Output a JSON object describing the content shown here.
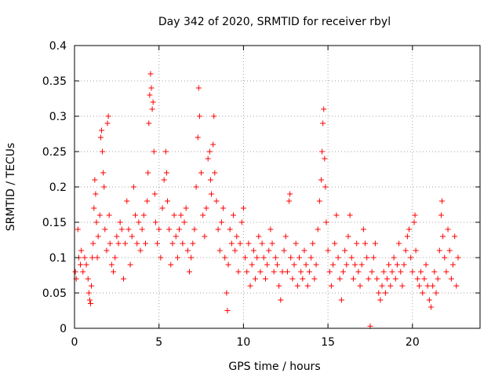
{
  "chart_data": {
    "type": "scatter",
    "title": "Day 342 of 2020, SRMTID for receiver rbyl",
    "xlabel": "GPS time / hours",
    "ylabel": "SRMTID / TECUs",
    "xlim": [
      0,
      24
    ],
    "ylim": [
      0,
      0.4
    ],
    "x_ticks": [
      "0",
      "5",
      "10",
      "15",
      "20"
    ],
    "y_ticks": [
      "0",
      "0.05",
      "0.1",
      "0.15",
      "0.2",
      "0.25",
      "0.3",
      "0.35",
      "0.4"
    ],
    "grid": true,
    "marker": "+",
    "series": [
      {
        "color": "#ff0000",
        "points": [
          [
            0.05,
            0.08
          ],
          [
            0.1,
            0.07
          ],
          [
            0.2,
            0.14
          ],
          [
            0.25,
            0.1
          ],
          [
            0.35,
            0.09
          ],
          [
            0.4,
            0.11
          ],
          [
            0.5,
            0.08
          ],
          [
            0.6,
            0.1
          ],
          [
            0.7,
            0.09
          ],
          [
            0.8,
            0.07
          ],
          [
            0.85,
            0.05
          ],
          [
            0.9,
            0.04
          ],
          [
            0.95,
            0.035
          ],
          [
            1.0,
            0.06
          ],
          [
            1.05,
            0.1
          ],
          [
            1.1,
            0.12
          ],
          [
            1.15,
            0.17
          ],
          [
            1.2,
            0.21
          ],
          [
            1.25,
            0.19
          ],
          [
            1.3,
            0.15
          ],
          [
            1.35,
            0.1
          ],
          [
            1.4,
            0.13
          ],
          [
            1.5,
            0.16
          ],
          [
            1.55,
            0.27
          ],
          [
            1.6,
            0.28
          ],
          [
            1.65,
            0.25
          ],
          [
            1.7,
            0.22
          ],
          [
            1.75,
            0.2
          ],
          [
            1.8,
            0.14
          ],
          [
            1.9,
            0.11
          ],
          [
            1.95,
            0.29
          ],
          [
            2.0,
            0.3
          ],
          [
            2.05,
            0.16
          ],
          [
            2.1,
            0.12
          ],
          [
            2.2,
            0.09
          ],
          [
            2.3,
            0.08
          ],
          [
            2.4,
            0.1
          ],
          [
            2.5,
            0.13
          ],
          [
            2.6,
            0.12
          ],
          [
            2.7,
            0.15
          ],
          [
            2.8,
            0.14
          ],
          [
            2.9,
            0.07
          ],
          [
            3.0,
            0.12
          ],
          [
            3.1,
            0.18
          ],
          [
            3.2,
            0.14
          ],
          [
            3.3,
            0.09
          ],
          [
            3.4,
            0.13
          ],
          [
            3.5,
            0.2
          ],
          [
            3.6,
            0.16
          ],
          [
            3.7,
            0.12
          ],
          [
            3.8,
            0.15
          ],
          [
            3.9,
            0.11
          ],
          [
            4.0,
            0.14
          ],
          [
            4.1,
            0.16
          ],
          [
            4.2,
            0.12
          ],
          [
            4.3,
            0.18
          ],
          [
            4.35,
            0.22
          ],
          [
            4.4,
            0.29
          ],
          [
            4.45,
            0.33
          ],
          [
            4.5,
            0.36
          ],
          [
            4.55,
            0.34
          ],
          [
            4.6,
            0.31
          ],
          [
            4.65,
            0.32
          ],
          [
            4.7,
            0.25
          ],
          [
            4.75,
            0.19
          ],
          [
            4.8,
            0.15
          ],
          [
            4.9,
            0.12
          ],
          [
            5.0,
            0.14
          ],
          [
            5.1,
            0.1
          ],
          [
            5.2,
            0.17
          ],
          [
            5.3,
            0.21
          ],
          [
            5.4,
            0.25
          ],
          [
            5.45,
            0.22
          ],
          [
            5.5,
            0.18
          ],
          [
            5.6,
            0.14
          ],
          [
            5.7,
            0.09
          ],
          [
            5.8,
            0.12
          ],
          [
            5.9,
            0.16
          ],
          [
            6.0,
            0.13
          ],
          [
            6.1,
            0.1
          ],
          [
            6.2,
            0.14
          ],
          [
            6.3,
            0.16
          ],
          [
            6.4,
            0.12
          ],
          [
            6.5,
            0.15
          ],
          [
            6.6,
            0.17
          ],
          [
            6.7,
            0.11
          ],
          [
            6.8,
            0.08
          ],
          [
            6.9,
            0.1
          ],
          [
            7.0,
            0.12
          ],
          [
            7.1,
            0.14
          ],
          [
            7.2,
            0.2
          ],
          [
            7.3,
            0.27
          ],
          [
            7.35,
            0.34
          ],
          [
            7.4,
            0.3
          ],
          [
            7.5,
            0.22
          ],
          [
            7.6,
            0.16
          ],
          [
            7.7,
            0.13
          ],
          [
            7.8,
            0.17
          ],
          [
            7.9,
            0.24
          ],
          [
            8.0,
            0.25
          ],
          [
            8.05,
            0.21
          ],
          [
            8.1,
            0.19
          ],
          [
            8.2,
            0.26
          ],
          [
            8.25,
            0.3
          ],
          [
            8.3,
            0.22
          ],
          [
            8.4,
            0.18
          ],
          [
            8.5,
            0.14
          ],
          [
            8.6,
            0.11
          ],
          [
            8.7,
            0.15
          ],
          [
            8.8,
            0.17
          ],
          [
            8.9,
            0.1
          ],
          [
            9.0,
            0.05
          ],
          [
            9.05,
            0.025
          ],
          [
            9.1,
            0.09
          ],
          [
            9.2,
            0.14
          ],
          [
            9.3,
            0.12
          ],
          [
            9.4,
            0.16
          ],
          [
            9.5,
            0.11
          ],
          [
            9.6,
            0.13
          ],
          [
            9.7,
            0.08
          ],
          [
            9.8,
            0.12
          ],
          [
            9.9,
            0.15
          ],
          [
            10.0,
            0.17
          ],
          [
            10.1,
            0.1
          ],
          [
            10.2,
            0.08
          ],
          [
            10.3,
            0.12
          ],
          [
            10.4,
            0.06
          ],
          [
            10.5,
            0.09
          ],
          [
            10.6,
            0.11
          ],
          [
            10.7,
            0.07
          ],
          [
            10.8,
            0.1
          ],
          [
            10.9,
            0.13
          ],
          [
            11.0,
            0.08
          ],
          [
            11.1,
            0.12
          ],
          [
            11.2,
            0.1
          ],
          [
            11.3,
            0.07
          ],
          [
            11.4,
            0.09
          ],
          [
            11.5,
            0.11
          ],
          [
            11.6,
            0.14
          ],
          [
            11.7,
            0.12
          ],
          [
            11.8,
            0.08
          ],
          [
            11.9,
            0.1
          ],
          [
            12.0,
            0.09
          ],
          [
            12.1,
            0.06
          ],
          [
            12.2,
            0.04
          ],
          [
            12.3,
            0.08
          ],
          [
            12.4,
            0.11
          ],
          [
            12.5,
            0.13
          ],
          [
            12.6,
            0.08
          ],
          [
            12.7,
            0.18
          ],
          [
            12.75,
            0.19
          ],
          [
            12.8,
            0.1
          ],
          [
            12.9,
            0.07
          ],
          [
            13.0,
            0.09
          ],
          [
            13.1,
            0.12
          ],
          [
            13.2,
            0.06
          ],
          [
            13.3,
            0.1
          ],
          [
            13.4,
            0.08
          ],
          [
            13.5,
            0.07
          ],
          [
            13.6,
            0.11
          ],
          [
            13.7,
            0.09
          ],
          [
            13.8,
            0.06
          ],
          [
            13.9,
            0.08
          ],
          [
            14.0,
            0.1
          ],
          [
            14.1,
            0.12
          ],
          [
            14.2,
            0.07
          ],
          [
            14.3,
            0.09
          ],
          [
            14.4,
            0.14
          ],
          [
            14.5,
            0.18
          ],
          [
            14.6,
            0.21
          ],
          [
            14.65,
            0.25
          ],
          [
            14.7,
            0.29
          ],
          [
            14.75,
            0.31
          ],
          [
            14.8,
            0.24
          ],
          [
            14.85,
            0.2
          ],
          [
            14.9,
            0.15
          ],
          [
            15.0,
            0.11
          ],
          [
            15.1,
            0.08
          ],
          [
            15.2,
            0.06
          ],
          [
            15.3,
            0.09
          ],
          [
            15.4,
            0.12
          ],
          [
            15.5,
            0.16
          ],
          [
            15.6,
            0.1
          ],
          [
            15.7,
            0.07
          ],
          [
            15.8,
            0.04
          ],
          [
            15.9,
            0.08
          ],
          [
            16.0,
            0.11
          ],
          [
            16.1,
            0.09
          ],
          [
            16.2,
            0.13
          ],
          [
            16.3,
            0.16
          ],
          [
            16.4,
            0.1
          ],
          [
            16.5,
            0.07
          ],
          [
            16.6,
            0.09
          ],
          [
            16.7,
            0.12
          ],
          [
            16.8,
            0.08
          ],
          [
            16.9,
            0.06
          ],
          [
            17.0,
            0.09
          ],
          [
            17.1,
            0.14
          ],
          [
            17.2,
            0.12
          ],
          [
            17.3,
            0.1
          ],
          [
            17.4,
            0.07
          ],
          [
            17.5,
            0.003
          ],
          [
            17.6,
            0.08
          ],
          [
            17.7,
            0.1
          ],
          [
            17.8,
            0.12
          ],
          [
            17.9,
            0.07
          ],
          [
            18.0,
            0.05
          ],
          [
            18.1,
            0.04
          ],
          [
            18.2,
            0.06
          ],
          [
            18.3,
            0.08
          ],
          [
            18.4,
            0.05
          ],
          [
            18.5,
            0.07
          ],
          [
            18.6,
            0.09
          ],
          [
            18.7,
            0.06
          ],
          [
            18.8,
            0.08
          ],
          [
            18.9,
            0.1
          ],
          [
            19.0,
            0.07
          ],
          [
            19.1,
            0.09
          ],
          [
            19.2,
            0.12
          ],
          [
            19.3,
            0.08
          ],
          [
            19.4,
            0.06
          ],
          [
            19.5,
            0.09
          ],
          [
            19.6,
            0.11
          ],
          [
            19.7,
            0.13
          ],
          [
            19.8,
            0.14
          ],
          [
            19.9,
            0.1
          ],
          [
            20.0,
            0.08
          ],
          [
            20.1,
            0.15
          ],
          [
            20.15,
            0.16
          ],
          [
            20.2,
            0.11
          ],
          [
            20.3,
            0.07
          ],
          [
            20.4,
            0.06
          ],
          [
            20.5,
            0.08
          ],
          [
            20.6,
            0.05
          ],
          [
            20.7,
            0.07
          ],
          [
            20.8,
            0.09
          ],
          [
            20.9,
            0.06
          ],
          [
            21.0,
            0.04
          ],
          [
            21.1,
            0.03
          ],
          [
            21.2,
            0.06
          ],
          [
            21.3,
            0.08
          ],
          [
            21.4,
            0.05
          ],
          [
            21.5,
            0.07
          ],
          [
            21.6,
            0.11
          ],
          [
            21.7,
            0.16
          ],
          [
            21.75,
            0.18
          ],
          [
            21.8,
            0.13
          ],
          [
            21.9,
            0.1
          ],
          [
            22.0,
            0.08
          ],
          [
            22.1,
            0.14
          ],
          [
            22.2,
            0.11
          ],
          [
            22.3,
            0.07
          ],
          [
            22.4,
            0.09
          ],
          [
            22.5,
            0.13
          ],
          [
            22.6,
            0.06
          ],
          [
            22.7,
            0.1
          ]
        ]
      }
    ]
  }
}
